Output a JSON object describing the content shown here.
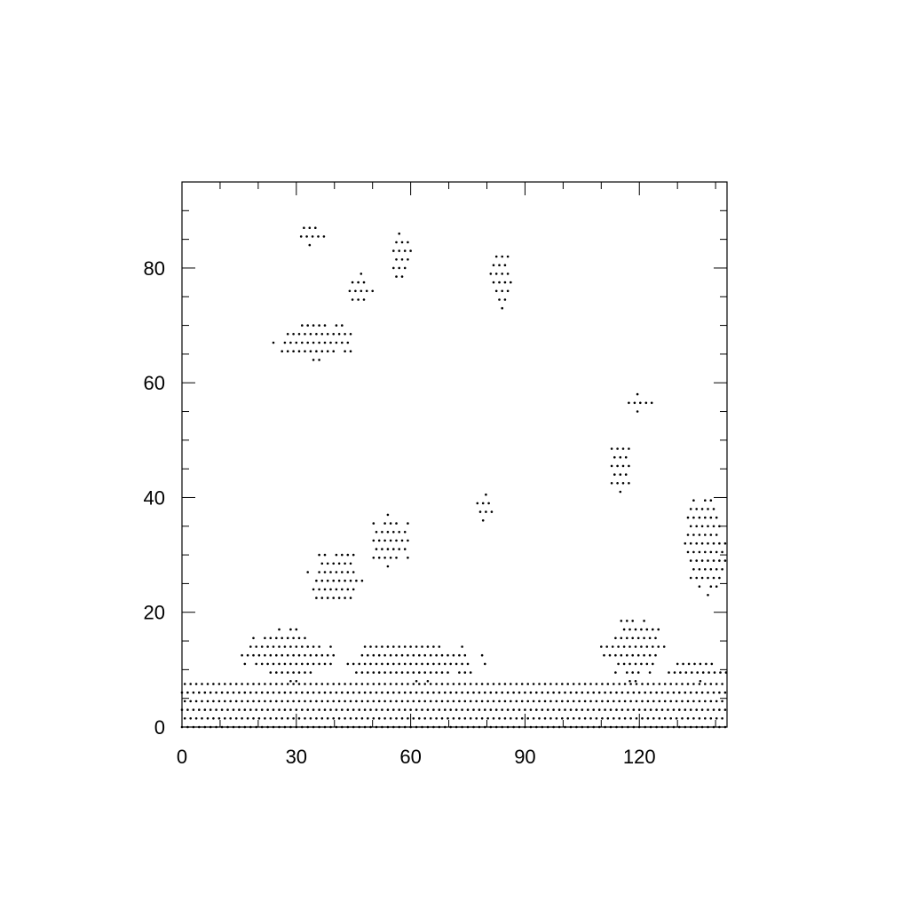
{
  "chart_data": {
    "type": "scatter",
    "title": "",
    "xlabel": "",
    "ylabel": "",
    "xlim": [
      0,
      143
    ],
    "ylim": [
      0,
      95
    ],
    "x_ticks": [
      "0",
      "30",
      "60",
      "90",
      "120"
    ],
    "y_ticks": [
      "0",
      "20",
      "40",
      "60",
      "80"
    ],
    "x_tick_values": [
      0,
      30,
      60,
      90,
      120
    ],
    "y_tick_values": [
      0,
      20,
      40,
      60,
      80
    ],
    "x_minor_step": 10,
    "y_minor_step": 5,
    "grid": false,
    "legend": "none",
    "marker_color": "#000000",
    "pattern": "stippled dot clusters on a staggered lattice",
    "clusters": [
      {
        "region": "bottom band",
        "x": [
          0,
          143
        ],
        "y": [
          0,
          8
        ]
      },
      {
        "region": "bottom mound",
        "x": [
          15,
          40
        ],
        "y": [
          8,
          17
        ]
      },
      {
        "region": "bottom mound",
        "x": [
          42,
          80
        ],
        "y": [
          8,
          15
        ]
      },
      {
        "region": "bottom mound",
        "x": [
          110,
          127
        ],
        "y": [
          8,
          19
        ]
      },
      {
        "region": "bottom mound",
        "x": [
          127,
          143
        ],
        "y": [
          8,
          12
        ]
      },
      {
        "region": "mid blob",
        "x": [
          33,
          48
        ],
        "y": [
          21,
          31
        ]
      },
      {
        "region": "mid blob",
        "x": [
          48,
          61
        ],
        "y": [
          28,
          37
        ]
      },
      {
        "region": "mid blob",
        "x": [
          76,
          82
        ],
        "y": [
          36,
          41
        ]
      },
      {
        "region": "mid blob",
        "x": [
          112,
          118
        ],
        "y": [
          41,
          50
        ]
      },
      {
        "region": "mid blob",
        "x": [
          132,
          143
        ],
        "y": [
          23,
          42
        ]
      },
      {
        "region": "upper arc",
        "x": [
          24,
          46
        ],
        "y": [
          64,
          71
        ]
      },
      {
        "region": "upper blob",
        "x": [
          29,
          38
        ],
        "y": [
          84,
          88
        ]
      },
      {
        "region": "upper blob",
        "x": [
          44,
          50
        ],
        "y": [
          73,
          80
        ]
      },
      {
        "region": "upper blob",
        "x": [
          54,
          61
        ],
        "y": [
          77,
          86
        ]
      },
      {
        "region": "upper blob",
        "x": [
          81,
          87
        ],
        "y": [
          73,
          83
        ]
      },
      {
        "region": "upper blob",
        "x": [
          115,
          125
        ],
        "y": [
          55,
          58
        ]
      }
    ]
  }
}
